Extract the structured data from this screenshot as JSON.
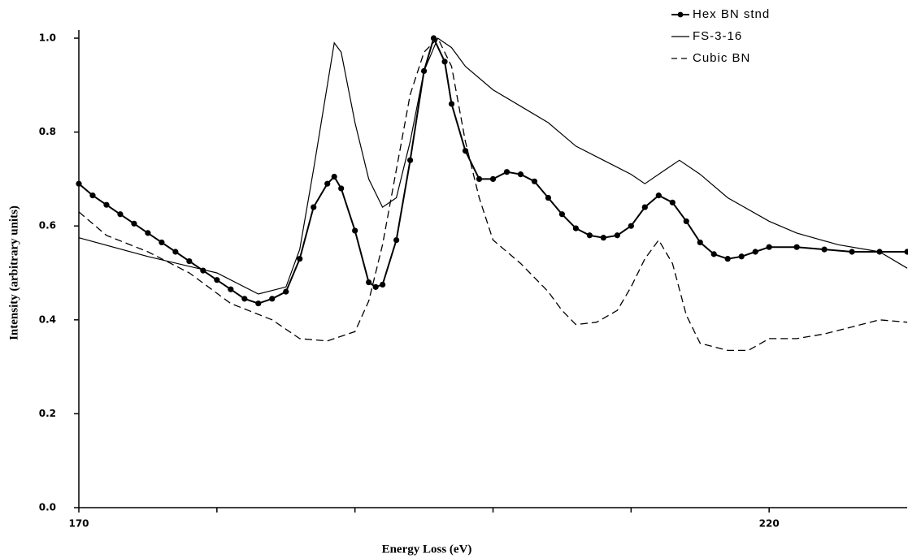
{
  "chart_data": {
    "type": "line",
    "x_label": "Energy Loss (eV)",
    "y_label": "Intensity (arbitrary units)",
    "xlim": [
      170,
      230
    ],
    "xticks": [
      170,
      220
    ],
    "x_minor_ticks": [
      180,
      190,
      200,
      210
    ],
    "ylim": [
      0,
      1.0
    ],
    "yticks": [
      {
        "value": 0,
        "label": "0.0"
      },
      0.2,
      0.4,
      0.6,
      0.8,
      {
        "value": 1.0,
        "label": "1.0"
      }
    ],
    "grid": false,
    "legend": "top-right",
    "series": [
      {
        "name": "Hex BN stnd",
        "color": "#000000",
        "style": "solid-markers",
        "x": [
          170,
          171,
          172,
          173,
          174,
          175,
          176,
          177,
          178,
          179,
          180,
          181,
          182,
          183,
          184,
          185,
          186,
          187,
          188,
          188.5,
          189,
          190,
          191,
          191.5,
          192,
          193,
          194,
          195,
          195.7,
          196.5,
          197,
          198,
          199,
          200,
          201,
          202,
          203,
          204,
          205,
          206,
          207,
          208,
          209,
          210,
          211,
          212,
          213,
          214,
          215,
          216,
          217,
          218,
          219,
          220,
          222,
          224,
          226,
          228,
          230
        ],
        "values": [
          0.69,
          0.665,
          0.645,
          0.625,
          0.605,
          0.585,
          0.565,
          0.545,
          0.525,
          0.505,
          0.485,
          0.465,
          0.445,
          0.435,
          0.445,
          0.46,
          0.53,
          0.64,
          0.69,
          0.705,
          0.68,
          0.59,
          0.48,
          0.47,
          0.475,
          0.57,
          0.74,
          0.93,
          1.0,
          0.95,
          0.86,
          0.76,
          0.7,
          0.7,
          0.715,
          0.71,
          0.695,
          0.66,
          0.625,
          0.595,
          0.58,
          0.575,
          0.58,
          0.6,
          0.64,
          0.665,
          0.65,
          0.61,
          0.565,
          0.54,
          0.53,
          0.535,
          0.545,
          0.555,
          0.555,
          0.55,
          0.545,
          0.545,
          0.545
        ]
      },
      {
        "name": "FS-3-16",
        "color": "#000000",
        "style": "solid",
        "x": [
          170,
          175,
          180,
          183,
          185,
          186,
          187,
          188,
          188.5,
          189,
          190,
          191,
          192,
          193,
          194,
          195,
          196,
          197,
          198,
          200,
          202,
          204,
          206,
          208,
          210,
          211,
          212.5,
          213.5,
          215,
          217,
          220,
          222,
          225,
          228,
          230
        ],
        "values": [
          0.575,
          0.535,
          0.5,
          0.455,
          0.47,
          0.55,
          0.72,
          0.9,
          0.99,
          0.97,
          0.82,
          0.7,
          0.64,
          0.66,
          0.78,
          0.93,
          1.0,
          0.98,
          0.94,
          0.89,
          0.855,
          0.82,
          0.77,
          0.74,
          0.71,
          0.69,
          0.72,
          0.74,
          0.71,
          0.66,
          0.61,
          0.585,
          0.56,
          0.545,
          0.51
        ]
      },
      {
        "name": "Cubic BN",
        "color": "#000000",
        "style": "dashed",
        "x": [
          170,
          172,
          175,
          178,
          181,
          184,
          186,
          188,
          190,
          191,
          192,
          193,
          194,
          195,
          196,
          197,
          198,
          199,
          200,
          202,
          204,
          205,
          206,
          207.5,
          209,
          210,
          211,
          212,
          213,
          214,
          215,
          217,
          218.5,
          220,
          222,
          224,
          226,
          228,
          230
        ],
        "values": [
          0.63,
          0.58,
          0.545,
          0.5,
          0.435,
          0.4,
          0.36,
          0.355,
          0.375,
          0.44,
          0.56,
          0.72,
          0.88,
          0.97,
          1.0,
          0.94,
          0.78,
          0.66,
          0.57,
          0.52,
          0.46,
          0.42,
          0.39,
          0.395,
          0.42,
          0.47,
          0.53,
          0.57,
          0.52,
          0.41,
          0.35,
          0.335,
          0.335,
          0.36,
          0.36,
          0.37,
          0.385,
          0.4,
          0.395
        ]
      }
    ]
  }
}
